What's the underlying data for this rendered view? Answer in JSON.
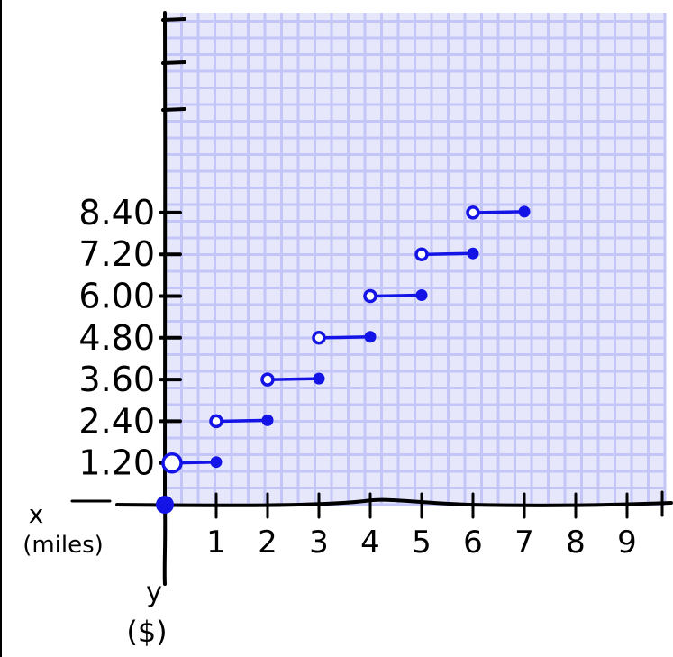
{
  "chart_data": {
    "type": "step",
    "xlabel": "x",
    "xlabel_unit": "(miles)",
    "ylabel": "y",
    "ylabel_unit": "($)",
    "xticks": [
      "1",
      "2",
      "3",
      "4",
      "5",
      "6",
      "7",
      "8",
      "9"
    ],
    "yticks": [
      "1.20",
      "2.40",
      "3.60",
      "4.80",
      "6.00",
      "7.20",
      "8.40"
    ],
    "xlim": [
      0,
      9.8
    ],
    "grid": true,
    "origin_point": {
      "x": 0,
      "y": 0,
      "filled": true
    },
    "segments": [
      {
        "x_start": 0,
        "x_end": 1,
        "y": 1.2,
        "start": "open",
        "end": "closed"
      },
      {
        "x_start": 1,
        "x_end": 2,
        "y": 2.4,
        "start": "open",
        "end": "closed"
      },
      {
        "x_start": 2,
        "x_end": 3,
        "y": 3.6,
        "start": "open",
        "end": "closed"
      },
      {
        "x_start": 3,
        "x_end": 4,
        "y": 4.8,
        "start": "open",
        "end": "closed"
      },
      {
        "x_start": 4,
        "x_end": 5,
        "y": 6.0,
        "start": "open",
        "end": "closed"
      },
      {
        "x_start": 5,
        "x_end": 6,
        "y": 7.2,
        "start": "open",
        "end": "closed"
      },
      {
        "x_start": 6,
        "x_end": 7,
        "y": 8.4,
        "start": "open",
        "end": "closed"
      }
    ],
    "colors": {
      "grid": "#c4c6f7",
      "grid_bg": "#e6e7fb",
      "series": "#1414e6",
      "axis": "#000000"
    }
  }
}
